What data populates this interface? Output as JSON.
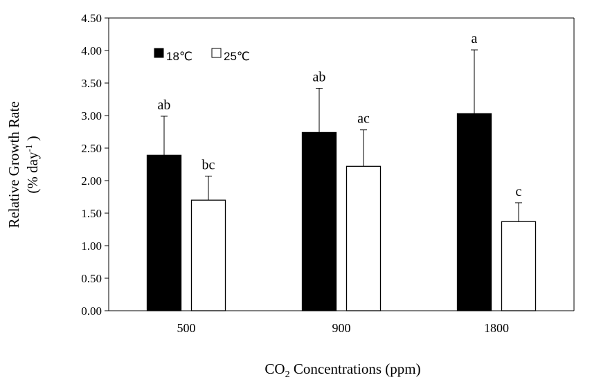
{
  "chart_data": {
    "type": "bar",
    "categories": [
      "500",
      "900",
      "1800"
    ],
    "series": [
      {
        "name": "18℃",
        "color": "#000000",
        "values": [
          2.39,
          2.74,
          3.03
        ],
        "errors": [
          0.6,
          0.68,
          0.98
        ],
        "letters": [
          "ab",
          "ab",
          "a"
        ]
      },
      {
        "name": "25℃",
        "color": "#ffffff",
        "values": [
          1.7,
          2.22,
          1.37
        ],
        "errors": [
          0.37,
          0.56,
          0.29
        ],
        "letters": [
          "bc",
          "ac",
          "c"
        ]
      }
    ],
    "ylim": [
      0,
      4.5
    ],
    "yticks": [
      "0.00",
      "0.50",
      "1.00",
      "1.50",
      "2.00",
      "2.50",
      "3.00",
      "3.50",
      "4.00",
      "4.50"
    ],
    "ylabel_line1": "Relative Growth Rate",
    "ylabel_line2_pre": "(% day",
    "ylabel_line2_sup": "-1",
    "ylabel_line2_post": " )",
    "xlabel_pre": "CO",
    "xlabel_sub": "2",
    "xlabel_post": " Concentrations (ppm)",
    "grid": false,
    "legend_position": "top-left"
  }
}
